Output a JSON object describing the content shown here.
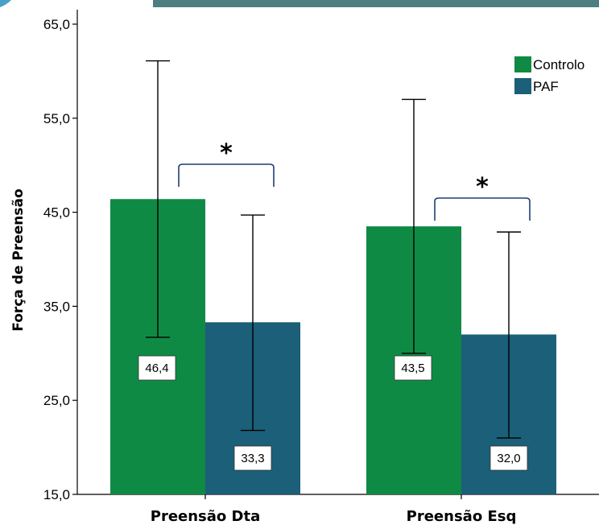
{
  "chart_data": {
    "type": "bar",
    "categories": [
      "Preensão Dta",
      "Preensão Esq"
    ],
    "series": [
      {
        "name": "Controlo",
        "color": "#0f8a45",
        "values": [
          46.4,
          43.5
        ],
        "value_labels": [
          "46,4",
          "43,5"
        ],
        "error_low": [
          31.7,
          30.0
        ],
        "error_high": [
          61.1,
          57.0
        ]
      },
      {
        "name": "PAF",
        "color": "#1b5f78",
        "values": [
          33.3,
          32.0
        ],
        "value_labels": [
          "33,3",
          "32,0"
        ],
        "error_low": [
          21.8,
          21.0
        ],
        "error_high": [
          44.7,
          42.9
        ]
      }
    ],
    "ylabel": "Força de Preensão",
    "xlabel": "",
    "ylim": [
      15,
      65
    ],
    "yticks": [
      15,
      25,
      35,
      45,
      55,
      65
    ],
    "ytick_labels": [
      "15,0",
      "25,0",
      "35,0",
      "45,0",
      "55,0",
      "65,0"
    ],
    "legend_position": "top-right",
    "grid": false,
    "annotations": [
      {
        "text": "*",
        "category_index": 0,
        "type": "significance-bracket"
      },
      {
        "text": "*",
        "category_index": 1,
        "type": "significance-bracket"
      }
    ],
    "header_band_color": "#4d7f80"
  }
}
